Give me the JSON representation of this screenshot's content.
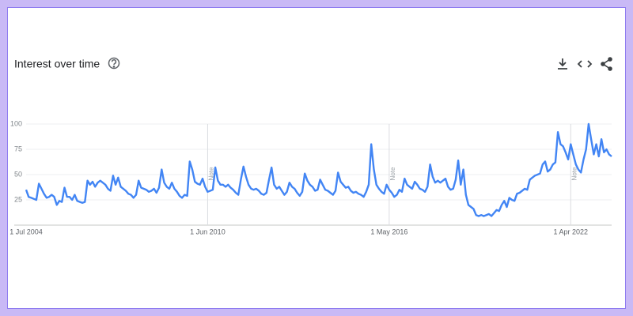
{
  "chart_data": {
    "type": "line",
    "title": "Interest over time",
    "note_label": "Note",
    "color": "#4285f4",
    "categories": [
      "1 Jul 2004",
      null,
      null,
      null,
      null,
      null,
      null,
      null,
      null,
      null,
      null,
      null,
      null,
      null,
      null,
      null,
      null,
      null,
      null,
      null,
      null,
      null,
      null,
      null,
      null,
      null,
      null,
      null,
      null,
      null,
      null,
      null,
      null,
      null,
      null,
      null,
      null,
      null,
      null,
      null,
      null,
      null,
      null,
      null,
      null,
      null,
      null,
      null,
      null,
      null,
      null,
      null,
      null,
      null,
      null,
      null,
      null,
      null,
      null,
      null,
      null,
      null,
      null,
      null,
      null,
      null,
      null,
      null,
      null,
      null,
      null,
      "1 Jun 2010",
      null,
      null,
      null,
      null,
      null,
      null,
      null,
      null,
      null,
      null,
      null,
      null,
      null,
      null,
      null,
      null,
      null,
      null,
      null,
      null,
      null,
      null,
      null,
      null,
      null,
      null,
      null,
      null,
      null,
      null,
      null,
      null,
      null,
      null,
      null,
      null,
      null,
      null,
      null,
      null,
      null,
      null,
      null,
      null,
      null,
      null,
      null,
      null,
      null,
      null,
      null,
      null,
      null,
      null,
      null,
      null,
      null,
      null,
      null,
      null,
      null,
      null,
      null,
      null,
      null,
      null,
      null,
      null,
      null,
      null,
      "1 May 2016",
      null,
      null,
      null,
      null,
      null,
      null,
      null,
      null,
      null,
      null,
      null,
      null,
      null,
      null,
      null,
      null,
      null,
      null,
      null,
      null,
      null,
      null,
      null,
      null,
      null,
      null,
      null,
      null,
      null,
      null,
      null,
      null,
      null,
      null,
      null,
      null,
      null,
      null,
      null,
      null,
      null,
      null,
      null,
      null,
      null,
      null,
      null,
      null,
      null,
      null,
      null,
      null,
      null,
      null,
      null,
      null,
      null,
      null,
      null,
      null,
      null,
      null,
      null,
      null,
      null,
      null,
      null,
      null,
      null,
      null,
      "1 Apr 2022",
      null,
      null,
      null,
      null,
      null,
      null,
      null,
      null,
      null,
      null,
      null,
      null,
      null,
      null,
      null,
      null
    ],
    "values": [
      35,
      28,
      27,
      26,
      25,
      41,
      36,
      31,
      27,
      28,
      30,
      28,
      20,
      24,
      23,
      37,
      28,
      28,
      25,
      30,
      24,
      23,
      22,
      23,
      44,
      40,
      43,
      38,
      42,
      44,
      42,
      40,
      36,
      34,
      49,
      40,
      47,
      38,
      36,
      34,
      31,
      30,
      27,
      30,
      44,
      37,
      36,
      35,
      33,
      34,
      36,
      32,
      37,
      55,
      42,
      38,
      36,
      42,
      36,
      33,
      29,
      27,
      30,
      29,
      63,
      55,
      43,
      41,
      40,
      46,
      38,
      33,
      34,
      35,
      57,
      44,
      40,
      40,
      38,
      40,
      37,
      35,
      32,
      30,
      45,
      58,
      48,
      40,
      36,
      35,
      36,
      34,
      31,
      30,
      32,
      45,
      57,
      40,
      36,
      38,
      34,
      30,
      33,
      42,
      38,
      36,
      32,
      29,
      33,
      51,
      44,
      40,
      38,
      34,
      35,
      45,
      40,
      35,
      34,
      32,
      30,
      34,
      52,
      43,
      40,
      37,
      38,
      34,
      32,
      33,
      31,
      30,
      28,
      33,
      40,
      80,
      55,
      40,
      36,
      33,
      31,
      40,
      35,
      32,
      28,
      30,
      35,
      33,
      46,
      40,
      38,
      36,
      43,
      40,
      36,
      35,
      33,
      38,
      60,
      48,
      42,
      44,
      42,
      44,
      46,
      38,
      35,
      36,
      45,
      64,
      40,
      55,
      30,
      20,
      18,
      16,
      10,
      9,
      10,
      9,
      10,
      11,
      9,
      12,
      15,
      14,
      20,
      24,
      18,
      27,
      25,
      24,
      31,
      32,
      34,
      36,
      35,
      45,
      47,
      49,
      50,
      51,
      60,
      63,
      53,
      55,
      60,
      62,
      92,
      80,
      78,
      72,
      65,
      80,
      70,
      60,
      55,
      52,
      65,
      75,
      100,
      85,
      70,
      80,
      68,
      85,
      72,
      75,
      70,
      68
    ],
    "ylim": [
      0,
      100
    ],
    "yticks": [
      25,
      50,
      75,
      100
    ],
    "grid": true
  }
}
